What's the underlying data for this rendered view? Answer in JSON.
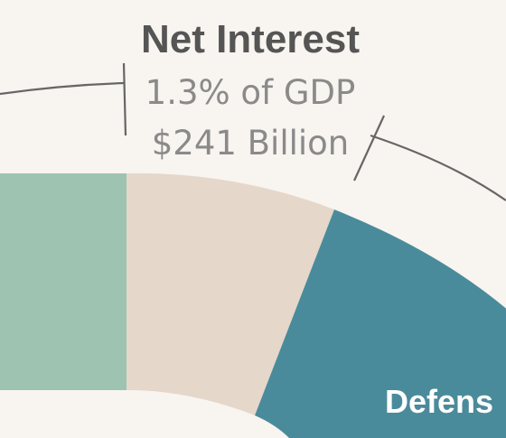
{
  "chart_data": {
    "type": "pie",
    "style": "donut",
    "slices": [
      {
        "label": "",
        "color": "#9ec3b0"
      },
      {
        "label": "Net Interest",
        "percent_of_gdp_label": "1.3% of GDP",
        "amount_label": "$241 Billion",
        "color": "#e5d7ca"
      },
      {
        "label": "Defense",
        "visible_label": "Defens",
        "color": "#4a8b9b"
      }
    ],
    "background": "#f8f4ef"
  }
}
